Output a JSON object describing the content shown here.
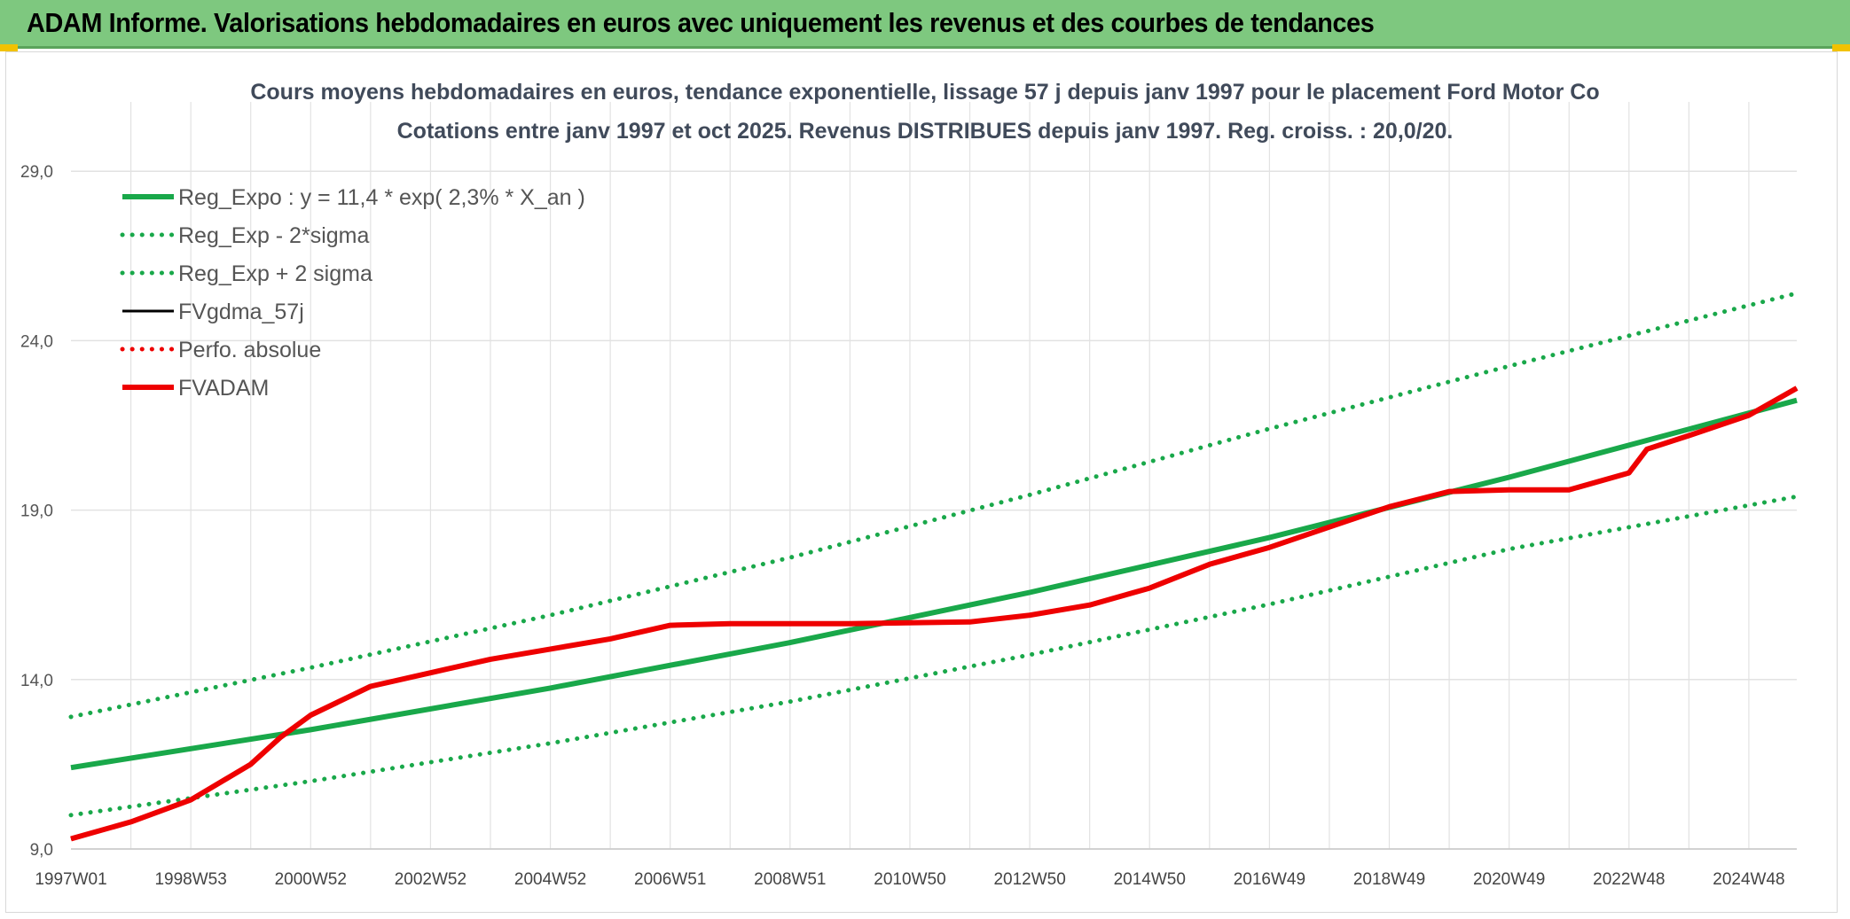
{
  "header": {
    "title": "ADAM Informe. Valorisations hebdomadaires en euros avec uniquement les revenus et des courbes de tendances"
  },
  "colors": {
    "header_bg": "#7ec87f",
    "green": "#19a84a",
    "red": "#ee0000",
    "black": "#000000",
    "grid": "#e2e2e2"
  },
  "chart_data": {
    "type": "line",
    "title": "Cours moyens hebdomadaires en euros, tendance exponentielle, lissage 57 j depuis janv 1997 pour le placement Ford Motor Co",
    "subtitle": "Cotations entre janv 1997 et oct 2025. Revenus DISTRIBUES depuis janv 1997. Reg. croiss. : 20,0/20.",
    "xlabel": "",
    "ylabel": "",
    "ylim": [
      9.0,
      30.0
    ],
    "y_ticks": [
      "9,0",
      "14,0",
      "19,0",
      "24,0",
      "29,0"
    ],
    "y_tick_values": [
      9,
      14,
      19,
      24,
      29
    ],
    "x_range": [
      1997.0,
      2025.8
    ],
    "x_tick_labels": [
      "1997W01",
      "1998W53",
      "2000W52",
      "2002W52",
      "2004W52",
      "2006W51",
      "2008W51",
      "2010W50",
      "2012W50",
      "2014W50",
      "2016W49",
      "2018W49",
      "2020W49",
      "2022W48",
      "2024W48"
    ],
    "x_tick_years": [
      1997.0,
      1999.0,
      2001.0,
      2003.0,
      2005.0,
      2007.0,
      2009.0,
      2011.0,
      2013.0,
      2015.0,
      2017.0,
      2019.0,
      2021.0,
      2023.0,
      2025.0
    ],
    "grid": true,
    "legend_position": "top-left",
    "series": [
      {
        "name": "Reg_Expo : y = 11,4 * exp( 2,3% *  X_an )",
        "style": "solid-thick",
        "color": "#19a84a",
        "x": [
          1997.0,
          2001.0,
          2005.0,
          2009.0,
          2013.0,
          2017.0,
          2021.0,
          2025.8
        ],
        "y": [
          11.4,
          12.52,
          13.75,
          15.09,
          16.57,
          18.19,
          19.97,
          22.24
        ]
      },
      {
        "name": "Reg_Exp - 2*sigma",
        "style": "dotted",
        "color": "#19a84a",
        "x": [
          1997.0,
          2001.0,
          2005.0,
          2009.0,
          2013.0,
          2017.0,
          2021.0,
          2025.8
        ],
        "y": [
          10.0,
          11.0,
          12.12,
          13.35,
          14.73,
          16.22,
          17.85,
          19.4
        ]
      },
      {
        "name": "Reg_Exp + 2 sigma",
        "style": "dotted",
        "color": "#19a84a",
        "x": [
          1997.0,
          2001.0,
          2005.0,
          2009.0,
          2013.0,
          2017.0,
          2021.0,
          2025.8
        ],
        "y": [
          12.9,
          14.35,
          15.9,
          17.6,
          19.45,
          21.4,
          23.25,
          25.4
        ]
      },
      {
        "name": "FVgdma_57j",
        "style": "solid",
        "color": "#000000",
        "x": [
          1997.0,
          1998.0,
          1999.0,
          2000.0,
          2000.5,
          2001.0,
          2002.0,
          2003.0,
          2004.0,
          2005.0,
          2006.0,
          2007.0,
          2008.0,
          2010.0,
          2012.0,
          2013.0,
          2014.0,
          2015.0,
          2016.0,
          2017.0,
          2018.0,
          2019.0,
          2020.0,
          2021.0,
          2022.0,
          2023.0,
          2023.3,
          2024.0,
          2025.0,
          2025.8
        ],
        "y": [
          9.3,
          9.8,
          10.45,
          11.5,
          12.3,
          12.95,
          13.8,
          14.2,
          14.6,
          14.9,
          15.2,
          15.6,
          15.65,
          15.65,
          15.7,
          15.9,
          16.2,
          16.7,
          17.4,
          17.9,
          18.5,
          19.1,
          19.55,
          19.6,
          19.6,
          20.1,
          20.8,
          21.2,
          21.8,
          22.6
        ]
      },
      {
        "name": "Perfo. absolue",
        "style": "dotted",
        "color": "#ee0000",
        "x": [],
        "y": []
      },
      {
        "name": "FVADAM",
        "style": "solid-thick",
        "color": "#ee0000",
        "x": [
          1997.0,
          1998.0,
          1999.0,
          2000.0,
          2000.5,
          2001.0,
          2002.0,
          2003.0,
          2004.0,
          2005.0,
          2006.0,
          2007.0,
          2008.0,
          2010.0,
          2012.0,
          2013.0,
          2014.0,
          2015.0,
          2016.0,
          2017.0,
          2018.0,
          2019.0,
          2020.0,
          2021.0,
          2022.0,
          2023.0,
          2023.3,
          2024.0,
          2025.0,
          2025.8
        ],
        "y": [
          9.3,
          9.8,
          10.45,
          11.5,
          12.3,
          12.95,
          13.8,
          14.2,
          14.6,
          14.9,
          15.2,
          15.6,
          15.65,
          15.65,
          15.7,
          15.9,
          16.2,
          16.7,
          17.4,
          17.9,
          18.5,
          19.1,
          19.55,
          19.6,
          19.6,
          20.1,
          20.8,
          21.2,
          21.8,
          22.6
        ]
      }
    ]
  }
}
